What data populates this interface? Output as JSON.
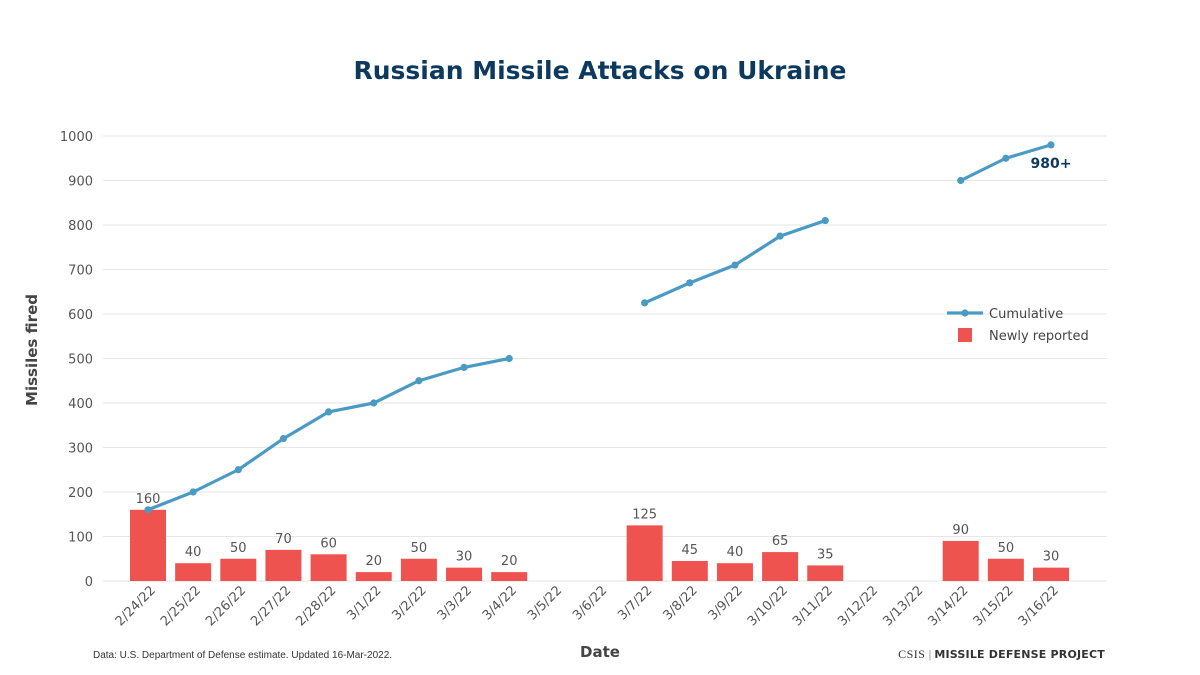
{
  "colors": {
    "title": "#0c3a5e",
    "bar": "#ef5350",
    "line": "#4a9bc4",
    "grid": "#e6e6e6"
  },
  "footer": {
    "source": "Data: U.S. Department of Defense estimate. Updated 16-Mar-2022.",
    "org": "CSIS",
    "separator": "|",
    "project": "MISSILE DEFENSE PROJECT"
  },
  "chart_data": {
    "type": "bar",
    "title": "Russian Missile Attacks on Ukraine",
    "xlabel": "Date",
    "ylabel": "Missiles fired",
    "ylim": [
      0,
      1000
    ],
    "yticks": [
      0,
      100,
      200,
      300,
      400,
      500,
      600,
      700,
      800,
      900,
      1000
    ],
    "grid": true,
    "legend_position": "right",
    "categories": [
      "2/24/22",
      "2/25/22",
      "2/26/22",
      "2/27/22",
      "2/28/22",
      "3/1/22",
      "3/2/22",
      "3/3/22",
      "3/4/22",
      "3/5/22",
      "3/6/22",
      "3/7/22",
      "3/8/22",
      "3/9/22",
      "3/10/22",
      "3/11/22",
      "3/12/22",
      "3/13/22",
      "3/14/22",
      "3/15/22",
      "3/16/22"
    ],
    "series": [
      {
        "name": "Newly reported",
        "type": "bar",
        "values": [
          160,
          40,
          50,
          70,
          60,
          20,
          50,
          30,
          20,
          null,
          null,
          125,
          45,
          40,
          65,
          35,
          null,
          null,
          90,
          50,
          30
        ]
      },
      {
        "name": "Cumulative",
        "type": "line",
        "values": [
          160,
          200,
          250,
          320,
          380,
          400,
          450,
          480,
          500,
          null,
          null,
          625,
          670,
          710,
          775,
          810,
          null,
          null,
          900,
          950,
          980
        ]
      }
    ],
    "annotations": [
      {
        "category": "3/16/22",
        "text": "980+"
      }
    ]
  }
}
